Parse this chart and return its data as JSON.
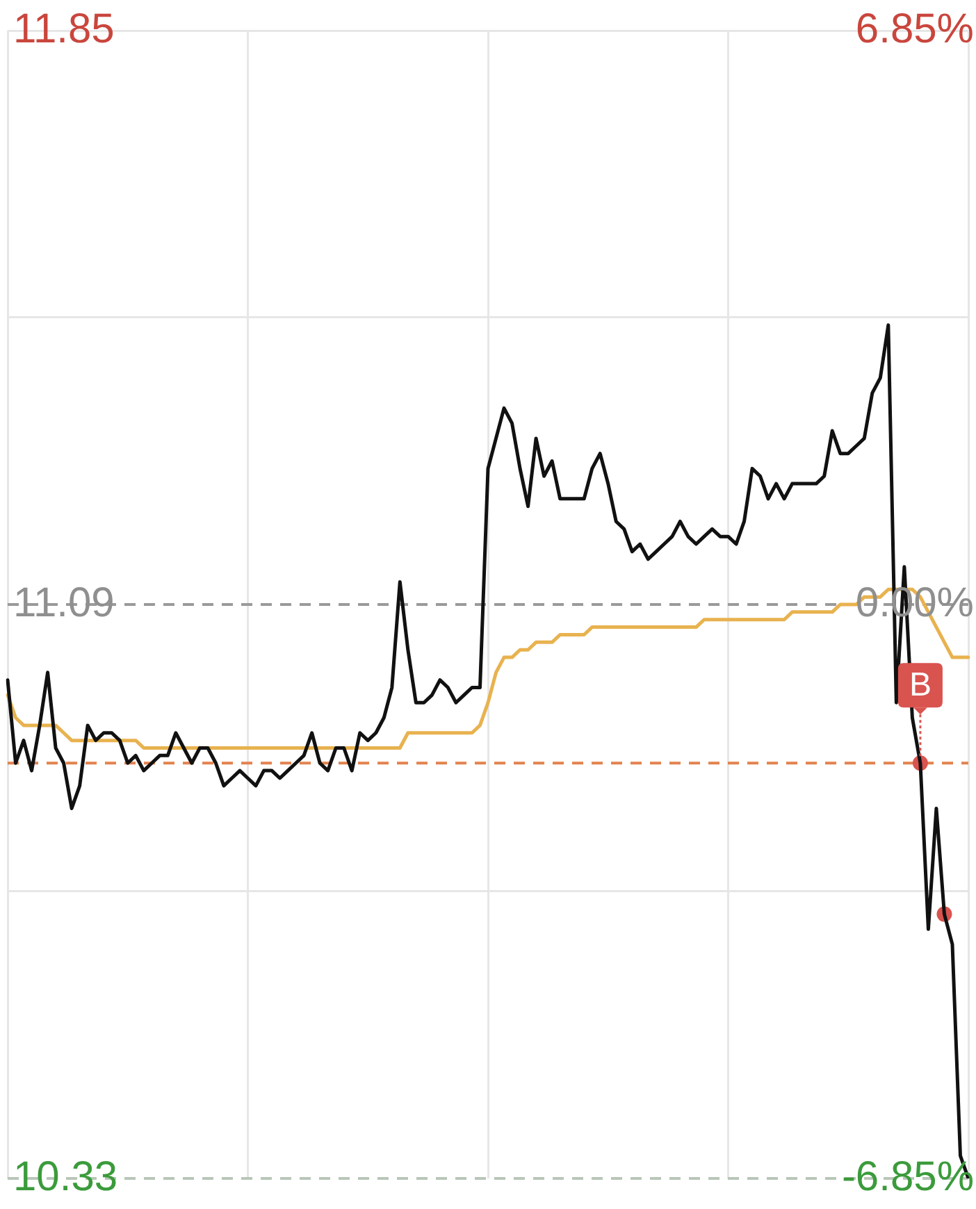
{
  "chart_data": {
    "type": "line",
    "categories": [
      null,
      null,
      null,
      null,
      null,
      null,
      null,
      null,
      null,
      null,
      null,
      null,
      null,
      null,
      null,
      null,
      null,
      null,
      null,
      null,
      null,
      null,
      null,
      null,
      null,
      null,
      null,
      null,
      null,
      null,
      null,
      null,
      null,
      null,
      null,
      null,
      null,
      null,
      null,
      null,
      null,
      null,
      null,
      null,
      null,
      null,
      null,
      null,
      null,
      null,
      null,
      null,
      null,
      null,
      null,
      null,
      null,
      null,
      null,
      null,
      null,
      null,
      null,
      null,
      null,
      null,
      null,
      null,
      null,
      null,
      null,
      null,
      null,
      null,
      null,
      null,
      null,
      null,
      null,
      null,
      null,
      null,
      null,
      null,
      null,
      null,
      null,
      null,
      null,
      null,
      null,
      null,
      null,
      null,
      null,
      null,
      null,
      null,
      null,
      null,
      null,
      null,
      null,
      null,
      null,
      null,
      null,
      null,
      null,
      null,
      null,
      null,
      null,
      null,
      null,
      null,
      null,
      null,
      null,
      null,
      null
    ],
    "series": [
      {
        "type": "line",
        "color": "#111111",
        "values": [
          10.99,
          10.88,
          10.91,
          10.87,
          10.93,
          11.0,
          10.9,
          10.88,
          10.82,
          10.85,
          10.93,
          10.91,
          10.92,
          10.92,
          10.91,
          10.88,
          10.89,
          10.87,
          10.88,
          10.89,
          10.89,
          10.92,
          10.9,
          10.88,
          10.9,
          10.9,
          10.88,
          10.85,
          10.86,
          10.87,
          10.86,
          10.85,
          10.87,
          10.87,
          10.86,
          10.87,
          10.88,
          10.89,
          10.92,
          10.88,
          10.87,
          10.9,
          10.9,
          10.87,
          10.92,
          10.91,
          10.92,
          10.94,
          10.98,
          11.12,
          11.03,
          10.96,
          10.96,
          10.97,
          10.99,
          10.98,
          10.96,
          10.97,
          10.98,
          10.98,
          11.27,
          11.31,
          11.35,
          11.33,
          11.27,
          11.22,
          11.31,
          11.26,
          11.28,
          11.23,
          11.23,
          11.23,
          11.23,
          11.27,
          11.29,
          11.25,
          11.2,
          11.19,
          11.16,
          11.17,
          11.15,
          11.16,
          11.17,
          11.18,
          11.2,
          11.18,
          11.17,
          11.18,
          11.19,
          11.18,
          11.18,
          11.17,
          11.2,
          11.27,
          11.26,
          11.23,
          11.25,
          11.23,
          11.25,
          11.25,
          11.25,
          11.25,
          11.26,
          11.32,
          11.29,
          11.29,
          11.3,
          11.31,
          11.37,
          11.39,
          11.46,
          10.96,
          11.14,
          10.94,
          10.88,
          10.66,
          10.82,
          10.68,
          10.64,
          10.36,
          10.33
        ]
      },
      {
        "type": "line",
        "color": "#e8b24f",
        "values": [
          10.97,
          10.94,
          10.93,
          10.93,
          10.93,
          10.93,
          10.93,
          10.92,
          10.91,
          10.91,
          10.91,
          10.91,
          10.91,
          10.91,
          10.91,
          10.91,
          10.91,
          10.9,
          10.9,
          10.9,
          10.9,
          10.9,
          10.9,
          10.9,
          10.9,
          10.9,
          10.9,
          10.9,
          10.9,
          10.9,
          10.9,
          10.9,
          10.9,
          10.9,
          10.9,
          10.9,
          10.9,
          10.9,
          10.9,
          10.9,
          10.9,
          10.9,
          10.9,
          10.9,
          10.9,
          10.9,
          10.9,
          10.9,
          10.9,
          10.9,
          10.92,
          10.92,
          10.92,
          10.92,
          10.92,
          10.92,
          10.92,
          10.92,
          10.92,
          10.93,
          10.96,
          11.0,
          11.02,
          11.02,
          11.03,
          11.03,
          11.04,
          11.04,
          11.04,
          11.05,
          11.05,
          11.05,
          11.05,
          11.06,
          11.06,
          11.06,
          11.06,
          11.06,
          11.06,
          11.06,
          11.06,
          11.06,
          11.06,
          11.06,
          11.06,
          11.06,
          11.06,
          11.07,
          11.07,
          11.07,
          11.07,
          11.07,
          11.07,
          11.07,
          11.07,
          11.07,
          11.07,
          11.07,
          11.08,
          11.08,
          11.08,
          11.08,
          11.08,
          11.08,
          11.09,
          11.09,
          11.09,
          11.1,
          11.1,
          11.1,
          11.11,
          11.11,
          11.11,
          11.11,
          11.1,
          11.08,
          11.06,
          11.04,
          11.02,
          11.02,
          11.02
        ]
      },
      {
        "type": "scatter",
        "color": "#d9534f",
        "marker": "circle",
        "values": [
          null,
          null,
          null,
          null,
          null,
          null,
          null,
          null,
          null,
          null,
          null,
          null,
          null,
          null,
          null,
          null,
          null,
          null,
          null,
          null,
          null,
          null,
          null,
          null,
          null,
          null,
          null,
          null,
          null,
          null,
          null,
          null,
          null,
          null,
          null,
          null,
          null,
          null,
          null,
          null,
          null,
          null,
          null,
          null,
          null,
          null,
          null,
          null,
          null,
          null,
          null,
          null,
          null,
          null,
          null,
          null,
          null,
          null,
          null,
          null,
          null,
          null,
          null,
          null,
          null,
          null,
          null,
          null,
          null,
          null,
          null,
          null,
          null,
          null,
          null,
          null,
          null,
          null,
          null,
          null,
          null,
          null,
          null,
          null,
          null,
          null,
          null,
          null,
          null,
          null,
          null,
          null,
          null,
          null,
          null,
          null,
          null,
          null,
          null,
          null,
          null,
          null,
          null,
          null,
          null,
          null,
          null,
          null,
          null,
          null,
          null,
          null,
          null,
          null,
          10.88,
          null,
          null,
          10.68,
          null,
          null,
          null
        ]
      }
    ],
    "ylim": [
      10.33,
      11.85
    ],
    "yticks": [
      10.33,
      {
        "value": 10.71,
        "label": null
      },
      11.09,
      {
        "value": 11.47,
        "label": null
      },
      11.85
    ],
    "y2lim": [
      -6.85,
      6.85
    ],
    "y2ticks": [
      {
        "value": -6.85,
        "label": "-6.85%"
      },
      {
        "value": 0,
        "label": "0.00%"
      },
      {
        "value": 6.85,
        "label": "6.85%"
      }
    ],
    "grid": true,
    "tick_labels": "y",
    "marker": "none",
    "ref_lines": [
      {
        "axis": "y",
        "value": 11.09,
        "color": "#9a9a9a",
        "line_style": "dashed"
      },
      {
        "axis": "y",
        "value": 10.33,
        "color": "#b9c6b9",
        "line_style": "dashed"
      },
      {
        "axis": "y",
        "value": 10.88,
        "color": "#e2834f",
        "line_style": "dashed"
      }
    ],
    "annotations": [
      {
        "text": "B",
        "y": 10.88
      }
    ]
  }
}
